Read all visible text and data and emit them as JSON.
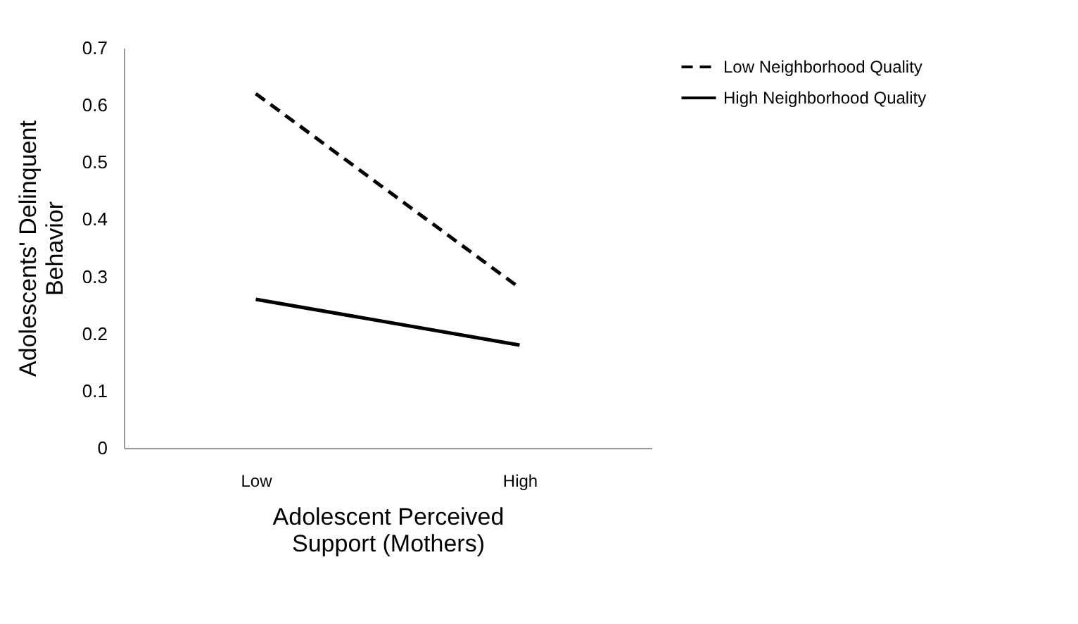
{
  "chart_data": {
    "type": "line",
    "xlabel": "Adolescent Perceived Support (Mothers)",
    "ylabel": "Adolescents' Delinquent Behavior",
    "categories": [
      "Low",
      "High"
    ],
    "series": [
      {
        "name": "Low Neighborhood Quality",
        "color": "#000000",
        "line_style": "dashed",
        "values": [
          0.62,
          0.28
        ]
      },
      {
        "name": "High Neighborhood Quality",
        "color": "#000000",
        "line_style": "solid",
        "values": [
          0.26,
          0.18
        ]
      }
    ],
    "ylim": [
      0,
      0.7
    ],
    "yticks": [
      0,
      0.1,
      0.2,
      0.3,
      0.4,
      0.5,
      0.6,
      0.7
    ],
    "grid": false,
    "legend": "right",
    "marker": "none"
  }
}
